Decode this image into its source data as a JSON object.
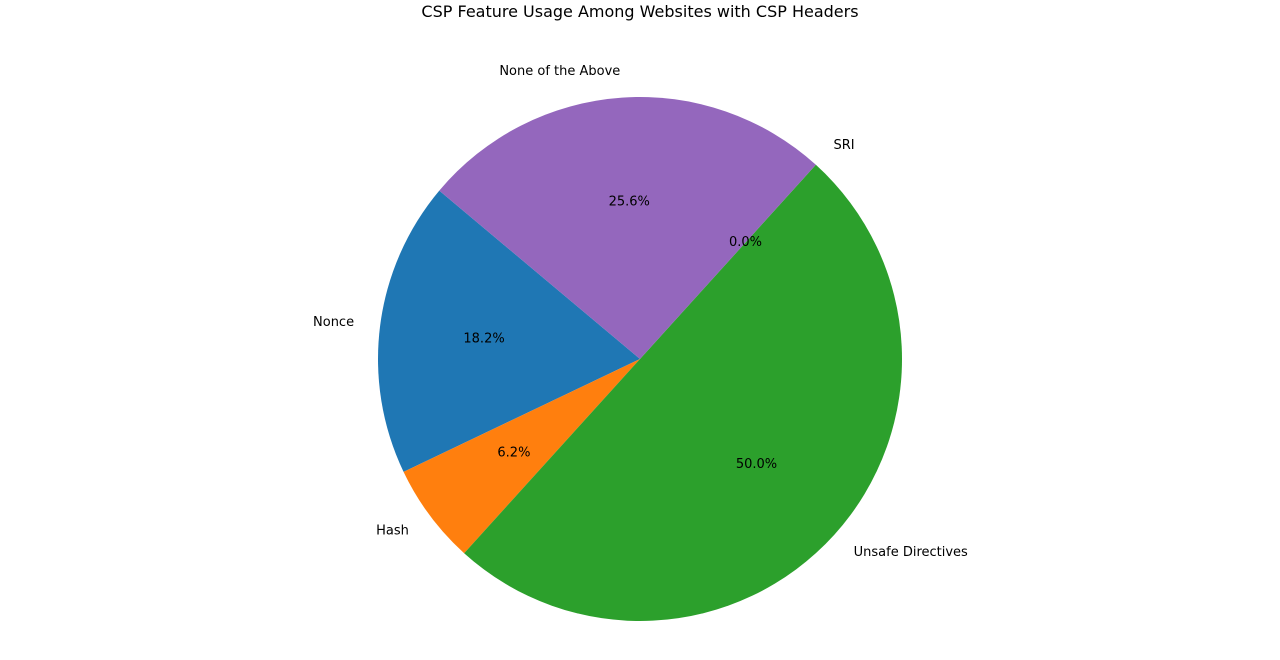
{
  "chart_data": {
    "type": "pie",
    "title": "CSP Feature Usage Among Websites with CSP Headers",
    "categories": [
      "Nonce",
      "Hash",
      "Unsafe Directives",
      "SRI",
      "None of the Above"
    ],
    "values": [
      18.2,
      6.2,
      50.0,
      0.0,
      25.6
    ],
    "percent_labels": [
      "18.2%",
      "6.2%",
      "50.0%",
      "0.0%",
      "25.6%"
    ],
    "colors": [
      "#1f77b4",
      "#ff7f0e",
      "#2ca02c",
      "#d62728",
      "#9467bd"
    ],
    "start_angle_deg": 140,
    "direction": "counterclockwise",
    "legend": "none"
  }
}
